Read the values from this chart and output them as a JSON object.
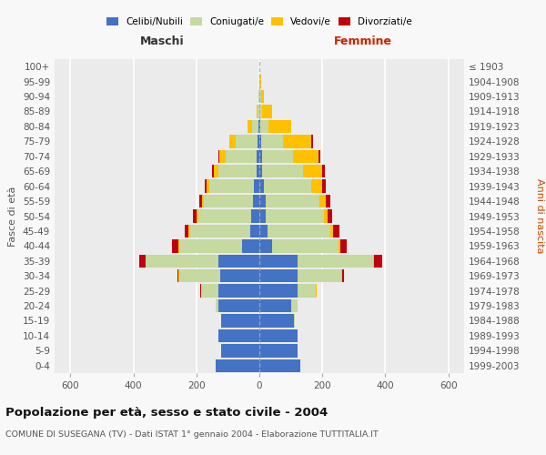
{
  "age_groups": [
    "0-4",
    "5-9",
    "10-14",
    "15-19",
    "20-24",
    "25-29",
    "30-34",
    "35-39",
    "40-44",
    "45-49",
    "50-54",
    "55-59",
    "60-64",
    "65-69",
    "70-74",
    "75-79",
    "80-84",
    "85-89",
    "90-94",
    "95-99",
    "100+"
  ],
  "birth_years": [
    "1999-2003",
    "1994-1998",
    "1989-1993",
    "1984-1988",
    "1979-1983",
    "1974-1978",
    "1969-1973",
    "1964-1968",
    "1959-1963",
    "1954-1958",
    "1949-1953",
    "1944-1948",
    "1939-1943",
    "1934-1938",
    "1929-1933",
    "1924-1928",
    "1919-1923",
    "1914-1918",
    "1909-1913",
    "1904-1908",
    "≤ 1903"
  ],
  "maschi": {
    "celibi": [
      140,
      120,
      130,
      120,
      130,
      130,
      125,
      130,
      55,
      30,
      25,
      20,
      18,
      10,
      8,
      5,
      2,
      0,
      0,
      0,
      0
    ],
    "coniugati": [
      0,
      0,
      0,
      2,
      8,
      55,
      130,
      230,
      200,
      190,
      170,
      155,
      140,
      120,
      100,
      70,
      20,
      5,
      2,
      1,
      0
    ],
    "vedovi": [
      0,
      0,
      0,
      0,
      1,
      1,
      1,
      2,
      3,
      5,
      5,
      8,
      10,
      15,
      20,
      20,
      15,
      5,
      2,
      0,
      0
    ],
    "divorziati": [
      0,
      0,
      0,
      0,
      1,
      2,
      5,
      20,
      18,
      12,
      10,
      8,
      5,
      5,
      2,
      0,
      0,
      0,
      0,
      0,
      0
    ]
  },
  "femmine": {
    "nubili": [
      130,
      120,
      120,
      110,
      100,
      120,
      120,
      120,
      40,
      25,
      20,
      20,
      15,
      10,
      8,
      5,
      2,
      0,
      0,
      0,
      0
    ],
    "coniugate": [
      0,
      0,
      0,
      2,
      20,
      60,
      140,
      240,
      210,
      200,
      185,
      170,
      150,
      130,
      100,
      70,
      28,
      10,
      5,
      2,
      0
    ],
    "vedove": [
      0,
      0,
      0,
      0,
      1,
      1,
      2,
      5,
      8,
      10,
      12,
      20,
      35,
      60,
      80,
      90,
      70,
      30,
      10,
      3,
      1
    ],
    "divorziate": [
      0,
      0,
      0,
      0,
      1,
      2,
      8,
      25,
      18,
      18,
      15,
      15,
      12,
      8,
      5,
      4,
      2,
      0,
      0,
      0,
      0
    ]
  },
  "colors": {
    "celibi": "#4472c4",
    "coniugati": "#c5d9a0",
    "vedovi": "#ffc000",
    "divorziati": "#c0000c"
  },
  "xlim": 650,
  "title": "Popolazione per età, sesso e stato civile - 2004",
  "subtitle": "COMUNE DI SUSEGANA (TV) - Dati ISTAT 1° gennaio 2004 - Elaborazione TUTTITALIA.IT",
  "xlabel_left": "Maschi",
  "xlabel_right": "Femmine",
  "ylabel_left": "Fasce di età",
  "ylabel_right": "Anni di nascita"
}
